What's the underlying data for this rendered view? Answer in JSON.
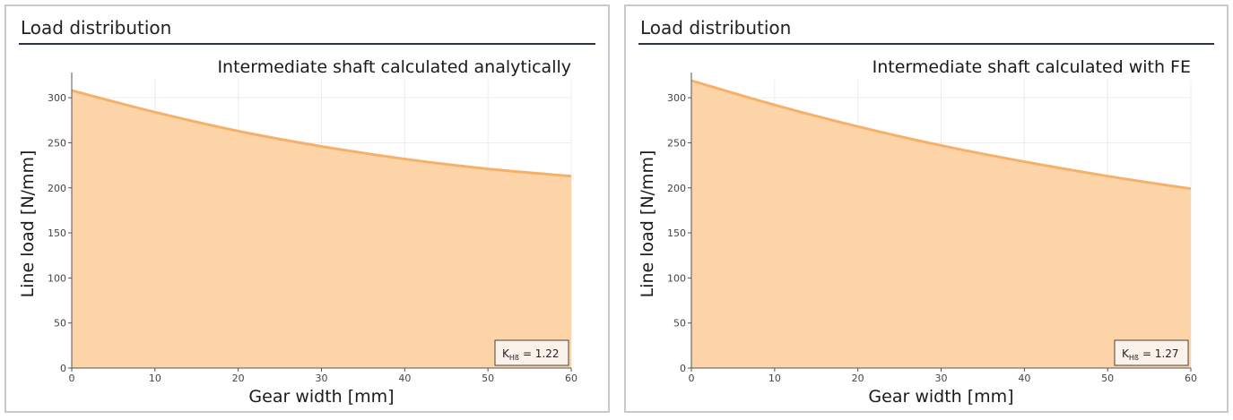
{
  "colors": {
    "area_fill": "#fdd4a8",
    "line": "#f5b16a",
    "grid": "#ececec",
    "title_rule": "#2b3447"
  },
  "chart_data": [
    {
      "type": "area",
      "panel_title": "Load distribution",
      "annotation": "Intermediate shaft calculated analytically",
      "xlabel": "Gear width [mm]",
      "ylabel": "Line load [N/mm]",
      "xlim": [
        0,
        60
      ],
      "ylim": [
        0,
        320
      ],
      "xticks": [
        0,
        10,
        20,
        30,
        40,
        50,
        60
      ],
      "yticks": [
        0,
        50,
        100,
        150,
        200,
        250,
        300
      ],
      "grid": true,
      "x": [
        0,
        10,
        20,
        30,
        40,
        50,
        60
      ],
      "y": [
        308,
        284,
        263,
        246,
        232,
        221,
        213
      ],
      "khb_label": "K",
      "khb_sub": "Hß",
      "khb_value": "= 1.22"
    },
    {
      "type": "area",
      "panel_title": "Load distribution",
      "annotation": "Intermediate shaft calculated with FE",
      "xlabel": "Gear width [mm]",
      "ylabel": "Line load [N/mm]",
      "xlim": [
        0,
        60
      ],
      "ylim": [
        0,
        320
      ],
      "xticks": [
        0,
        10,
        20,
        30,
        40,
        50,
        60
      ],
      "yticks": [
        0,
        50,
        100,
        150,
        200,
        250,
        300
      ],
      "grid": true,
      "x": [
        0,
        10,
        20,
        30,
        40,
        50,
        60
      ],
      "y": [
        319,
        292,
        268,
        247,
        229,
        213,
        199
      ],
      "khb_label": "K",
      "khb_sub": "Hß",
      "khb_value": "= 1.27"
    }
  ]
}
